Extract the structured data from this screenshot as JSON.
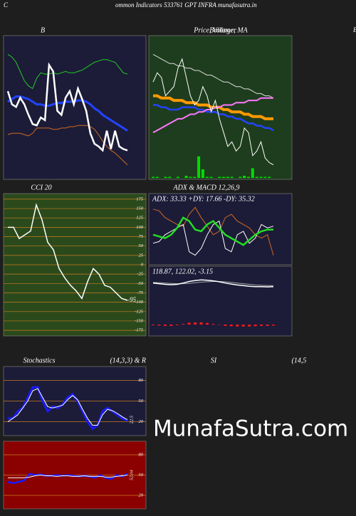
{
  "header": {
    "left": "C",
    "title": "ommon  Indicators 533761 GPT INFRA munafasutra.in",
    "right": "B"
  },
  "watermark": "MunafaSutra.com",
  "chart_data": [
    {
      "type": "line",
      "title": "B",
      "background": "#1c1c38",
      "series": [
        {
          "color": "#22cc22",
          "values": [
            98,
            96,
            92,
            85,
            78,
            74,
            72,
            80,
            84,
            83,
            83,
            84,
            83,
            84,
            85,
            84,
            84,
            85,
            86,
            88,
            90,
            92,
            93,
            94,
            94,
            93,
            92,
            88,
            84,
            83
          ]
        },
        {
          "color": "#2244ff",
          "width": 3,
          "values": [
            62,
            64,
            66,
            66,
            65,
            64,
            62,
            60,
            60,
            59,
            59,
            60,
            61,
            61,
            62,
            62,
            62,
            63,
            63,
            62,
            60,
            57,
            55,
            52,
            50,
            48,
            46,
            44,
            42,
            40
          ]
        },
        {
          "color": "#d2691e",
          "values": [
            37,
            38,
            38,
            38,
            37,
            36,
            38,
            42,
            42,
            42,
            42,
            41,
            41,
            42,
            42,
            43,
            43,
            44,
            44,
            44,
            43,
            41,
            37,
            32,
            28,
            25,
            23,
            20,
            17,
            14
          ]
        },
        {
          "color": "#ffffff",
          "width": 2.5,
          "values": [
            70,
            60,
            58,
            65,
            60,
            52,
            45,
            44,
            50,
            48,
            90,
            85,
            55,
            52,
            65,
            70,
            60,
            72,
            64,
            55,
            38,
            30,
            28,
            25,
            40,
            26,
            40,
            28,
            26,
            25
          ]
        }
      ]
    },
    {
      "type": "line",
      "title": "Price, Volume, MA",
      "overlay_title": "Bollinger",
      "background": "#1e3d1e",
      "series": [
        {
          "color": "#dddddd",
          "values": [
            80,
            79,
            78,
            77,
            76,
            76,
            75,
            75,
            74,
            74,
            73,
            73,
            72,
            71,
            71,
            70,
            69,
            68,
            68,
            67,
            66,
            66,
            65,
            65,
            64,
            63,
            63,
            62,
            62,
            61
          ]
        },
        {
          "color": "#ff9900",
          "width": 4,
          "values": [
            62,
            62,
            61,
            61,
            61,
            60,
            60,
            60,
            59,
            59,
            59,
            58,
            58,
            58,
            57,
            57,
            57,
            56,
            56,
            55,
            55,
            55,
            54,
            54,
            53,
            53,
            53,
            52,
            52,
            52
          ]
        },
        {
          "color": "#2244ff",
          "width": 2.5,
          "values": [
            58,
            58,
            57,
            57,
            56,
            56,
            56,
            57,
            57,
            57,
            57,
            56,
            56,
            55,
            55,
            55,
            54,
            54,
            53,
            53,
            52,
            52,
            51,
            50,
            50,
            49,
            49,
            48,
            48,
            47
          ]
        },
        {
          "color": "#ff77ff",
          "width": 2,
          "values": [
            46,
            47,
            48,
            49,
            50,
            51,
            52,
            52,
            53,
            54,
            54,
            55,
            55,
            56,
            56,
            57,
            57,
            58,
            58,
            58,
            59,
            59,
            59,
            60,
            60,
            60,
            61,
            61,
            61,
            61
          ]
        },
        {
          "color": "#ffffff",
          "values": [
            68,
            72,
            70,
            62,
            64,
            66,
            74,
            78,
            70,
            62,
            58,
            60,
            66,
            62,
            55,
            60,
            52,
            46,
            40,
            42,
            38,
            40,
            48,
            46,
            36,
            38,
            42,
            35,
            33,
            32
          ]
        },
        {
          "type": "bar",
          "axis": "y2",
          "color": "#00dd00",
          "values": [
            1,
            1,
            0,
            1,
            1,
            0,
            1,
            0,
            2,
            1,
            1,
            20,
            8,
            1,
            1,
            0,
            1,
            1,
            1,
            1,
            0,
            1,
            2,
            1,
            9,
            1,
            1,
            1,
            1,
            0
          ]
        }
      ]
    },
    {
      "type": "line",
      "title": "CCI 20",
      "background": "#2b4a1c",
      "grid_color": "#c87a1e",
      "ylim": [
        -190,
        190
      ],
      "yticks": [
        175,
        150,
        125,
        100,
        75,
        50,
        25,
        0,
        -25,
        -50,
        -75,
        -100,
        -125,
        -150,
        -175
      ],
      "end_label": "-95",
      "series": [
        {
          "color": "#ffffff",
          "width": 1.5,
          "values": [
            100,
            100,
            70,
            80,
            90,
            160,
            120,
            60,
            40,
            -10,
            -35,
            -55,
            -70,
            -90,
            -45,
            -10,
            -25,
            -55,
            -60,
            -75,
            -90,
            -95
          ]
        }
      ]
    },
    {
      "type": "line",
      "title": "ADX  & MACD 12,26,9",
      "subtitle": "ADX: 33.33  +DY: 17.66  -DY: 35.32",
      "background": "#1c1c38",
      "series": [
        {
          "color": "#d2691e",
          "values": [
            45,
            44,
            40,
            38,
            36,
            35,
            42,
            46,
            40,
            35,
            30,
            32,
            40,
            42,
            38,
            36,
            34,
            30,
            28,
            30,
            18
          ]
        },
        {
          "color": "#ffffff",
          "values": [
            25,
            26,
            30,
            32,
            34,
            36,
            20,
            18,
            22,
            30,
            36,
            38,
            22,
            20,
            30,
            32,
            25,
            28,
            36,
            34,
            35
          ]
        },
        {
          "color": "#22dd22",
          "width": 2.5,
          "values": [
            30,
            29,
            28,
            30,
            34,
            40,
            38,
            33,
            32,
            36,
            38,
            34,
            30,
            28,
            26,
            24,
            27,
            30,
            32,
            33,
            33
          ]
        }
      ]
    },
    {
      "type": "line",
      "subtitle": "118.87,  122.02,  -3.15",
      "background": "#1c1c38",
      "series": [
        {
          "type": "bar",
          "color": "#ff1a1a",
          "values": [
            -2,
            -3,
            -4,
            -4,
            -2,
            2,
            6,
            7,
            7,
            5,
            2,
            -1,
            -4,
            -5,
            -6,
            -6,
            -6,
            -5,
            -4,
            -4,
            -3
          ]
        },
        {
          "color": "#aaaaaa",
          "values": [
            132,
            131,
            130,
            129,
            128,
            128,
            129,
            131,
            133,
            134,
            135,
            135,
            134,
            132,
            130,
            128,
            126,
            124,
            123,
            122,
            122
          ]
        },
        {
          "color": "#ffffff",
          "width": 1.5,
          "values": [
            130,
            128,
            126,
            125,
            126,
            130,
            135,
            138,
            140,
            139,
            137,
            134,
            130,
            127,
            124,
            122,
            120,
            119,
            119,
            118,
            119
          ]
        }
      ]
    },
    {
      "type": "line",
      "title": "Stochastics",
      "subtitle": "(14,3,3) & R",
      "background": "#1c1c38",
      "grid_color": "#c87a1e",
      "ylim": [
        0,
        100
      ],
      "yticks": [
        80,
        50,
        20
      ],
      "end_label": "22.5",
      "series": [
        {
          "color": "#1a1aff",
          "width": 3,
          "values": [
            25,
            25,
            35,
            40,
            55,
            70,
            70,
            50,
            35,
            42,
            40,
            45,
            55,
            60,
            50,
            35,
            20,
            10,
            15,
            35,
            40,
            35,
            30,
            25,
            22
          ]
        },
        {
          "color": "#ffffff",
          "values": [
            20,
            25,
            30,
            40,
            50,
            65,
            68,
            55,
            42,
            40,
            42,
            44,
            52,
            58,
            52,
            38,
            25,
            15,
            15,
            30,
            38,
            36,
            32,
            27,
            23
          ]
        }
      ]
    },
    {
      "type": "line",
      "title": "SI",
      "subtitle": "(14,5",
      "background": "#8b0000",
      "grid_color": "#c87a1e",
      "ylim": [
        0,
        100
      ],
      "yticks": [
        80,
        50,
        20
      ],
      "end_label": "52.04",
      "series": [
        {
          "color": "#1a1aff",
          "width": 2.5,
          "values": [
            40,
            38,
            40,
            42,
            52,
            50,
            51,
            49,
            49,
            50,
            49,
            50,
            49,
            48,
            49,
            48,
            46,
            50,
            46,
            44,
            50,
            48,
            52
          ]
        },
        {
          "color": "#ffffff",
          "values": [
            46,
            46,
            46,
            46,
            47,
            49,
            50,
            49,
            49,
            48,
            49,
            49,
            48,
            48,
            49,
            48,
            48,
            48,
            47,
            47,
            48,
            49,
            50
          ]
        }
      ]
    }
  ]
}
